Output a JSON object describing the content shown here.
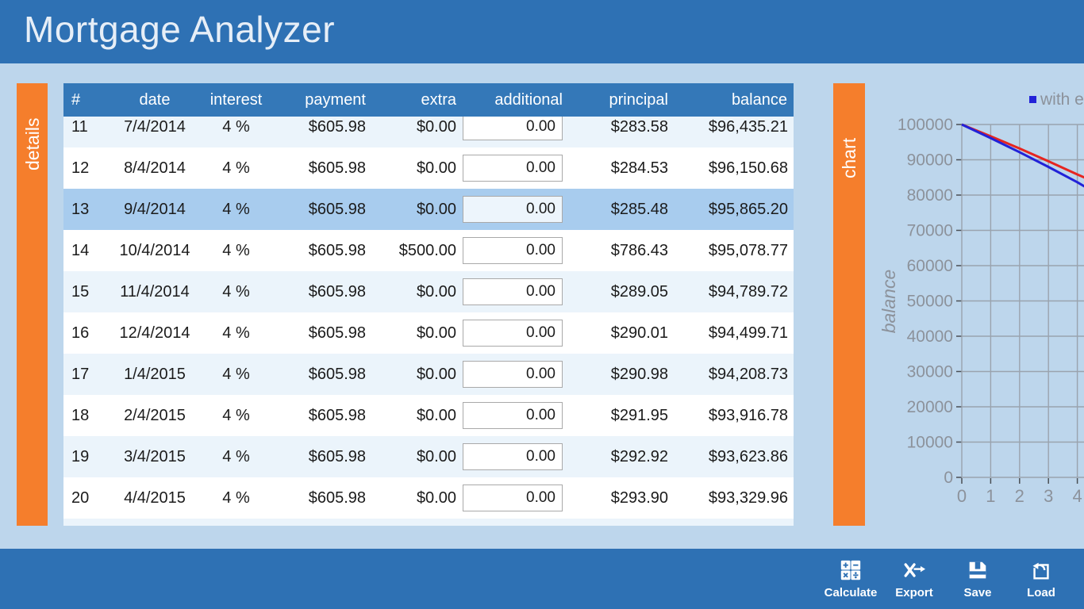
{
  "app": {
    "title": "Mortgage Analyzer"
  },
  "tabs": {
    "details": "details",
    "chart": "chart"
  },
  "table": {
    "columns": [
      "#",
      "date",
      "interest",
      "payment",
      "extra",
      "additional",
      "principal",
      "balance"
    ],
    "rows": [
      {
        "num": "11",
        "date": "7/4/2014",
        "interest": "4 %",
        "payment": "$605.98",
        "extra": "$0.00",
        "additional": "0.00",
        "principal": "$283.58",
        "balance": "$96,435.21",
        "selected": false
      },
      {
        "num": "12",
        "date": "8/4/2014",
        "interest": "4 %",
        "payment": "$605.98",
        "extra": "$0.00",
        "additional": "0.00",
        "principal": "$284.53",
        "balance": "$96,150.68",
        "selected": false
      },
      {
        "num": "13",
        "date": "9/4/2014",
        "interest": "4 %",
        "payment": "$605.98",
        "extra": "$0.00",
        "additional": "0.00",
        "principal": "$285.48",
        "balance": "$95,865.20",
        "selected": true
      },
      {
        "num": "14",
        "date": "10/4/2014",
        "interest": "4 %",
        "payment": "$605.98",
        "extra": "$500.00",
        "additional": "0.00",
        "principal": "$786.43",
        "balance": "$95,078.77",
        "selected": false
      },
      {
        "num": "15",
        "date": "11/4/2014",
        "interest": "4 %",
        "payment": "$605.98",
        "extra": "$0.00",
        "additional": "0.00",
        "principal": "$289.05",
        "balance": "$94,789.72",
        "selected": false
      },
      {
        "num": "16",
        "date": "12/4/2014",
        "interest": "4 %",
        "payment": "$605.98",
        "extra": "$0.00",
        "additional": "0.00",
        "principal": "$290.01",
        "balance": "$94,499.71",
        "selected": false
      },
      {
        "num": "17",
        "date": "1/4/2015",
        "interest": "4 %",
        "payment": "$605.98",
        "extra": "$0.00",
        "additional": "0.00",
        "principal": "$290.98",
        "balance": "$94,208.73",
        "selected": false
      },
      {
        "num": "18",
        "date": "2/4/2015",
        "interest": "4 %",
        "payment": "$605.98",
        "extra": "$0.00",
        "additional": "0.00",
        "principal": "$291.95",
        "balance": "$93,916.78",
        "selected": false
      },
      {
        "num": "19",
        "date": "3/4/2015",
        "interest": "4 %",
        "payment": "$605.98",
        "extra": "$0.00",
        "additional": "0.00",
        "principal": "$292.92",
        "balance": "$93,623.86",
        "selected": false
      },
      {
        "num": "20",
        "date": "4/4/2015",
        "interest": "4 %",
        "payment": "$605.98",
        "extra": "$0.00",
        "additional": "0.00",
        "principal": "$293.90",
        "balance": "$93,329.96",
        "selected": false
      },
      {
        "num": "",
        "date": "",
        "interest": "",
        "payment": "",
        "extra": "",
        "additional": "",
        "principal": "",
        "balance": "",
        "selected": false,
        "partial": true
      }
    ]
  },
  "chart_data": {
    "type": "line",
    "title": "",
    "xlabel": "",
    "ylabel": "balance",
    "ylim": [
      0,
      100000
    ],
    "y_ticks": [
      0,
      10000,
      20000,
      30000,
      40000,
      50000,
      60000,
      70000,
      80000,
      90000,
      100000
    ],
    "x_ticks": [
      0,
      1,
      2,
      3,
      4
    ],
    "grid": true,
    "legend_position": "top-right",
    "legend_visible_text": "with e",
    "series": [
      {
        "legend_label": "with e",
        "color": "#2222D8",
        "x": [
          0,
          1,
          2,
          3,
          4,
          4.4
        ],
        "values": [
          100000,
          96150,
          92146,
          87976,
          83637,
          81700
        ]
      },
      {
        "legend_label": "",
        "color": "#E62520",
        "x": [
          0,
          1,
          2,
          3,
          4,
          4.4
        ],
        "values": [
          100000,
          96667,
          93201,
          89590,
          85833,
          84450
        ]
      }
    ]
  },
  "toolbar": {
    "buttons": [
      {
        "label": "Calculate",
        "icon": "calculator-icon"
      },
      {
        "label": "Export",
        "icon": "export-icon"
      },
      {
        "label": "Save",
        "icon": "save-icon"
      },
      {
        "label": "Load",
        "icon": "load-icon"
      }
    ]
  },
  "colors": {
    "bar_blue": "#2E71B4",
    "table_header_blue": "#3478B8",
    "background_blue": "#BDD6EC",
    "tab_orange": "#F57E2C",
    "selected_row": "#A8CCEE",
    "row_stripe": "#EBF4FB",
    "chart_line_with_extra": "#2222D8",
    "chart_line_without_extra": "#E62520",
    "chart_gray": "#8C929B"
  }
}
